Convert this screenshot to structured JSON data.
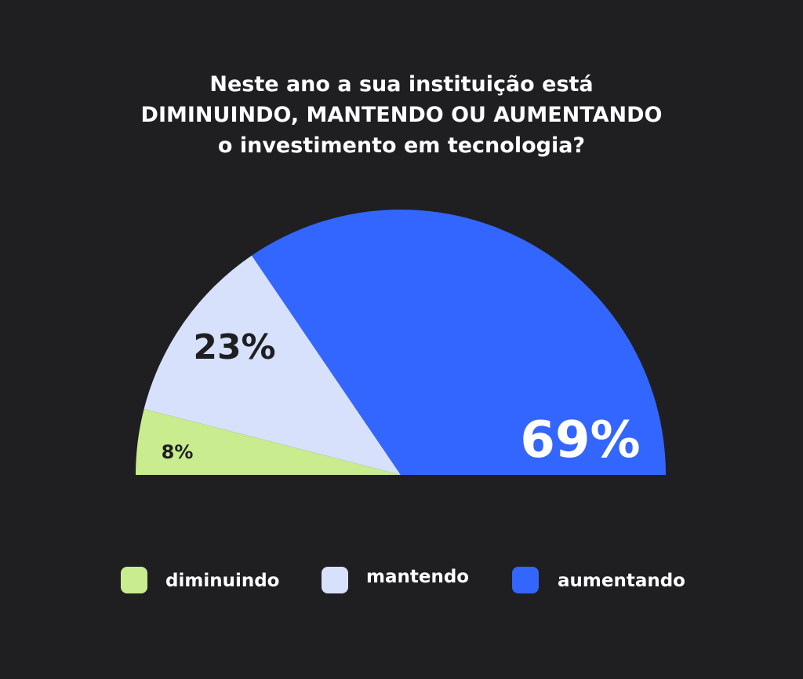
{
  "chart_data": {
    "type": "pie",
    "subtype": "semicircle",
    "title_lines": [
      "Neste ano a sua instituição está",
      "DIMINUINDO, MANTENDO OU AUMENTANDO",
      "o investimento em tecnologia?"
    ],
    "slices": [
      {
        "key": "diminuindo",
        "label": "diminuindo",
        "value": 8,
        "value_label": "8%",
        "color": "#c8ec8e",
        "label_color": "#1f1f22"
      },
      {
        "key": "mantendo",
        "label": "mantendo",
        "value": 23,
        "value_label": "23%",
        "color": "#d7e1fb",
        "label_color": "#1f1f22"
      },
      {
        "key": "aumentando",
        "label": "aumentando",
        "value": 69,
        "value_label": "69%",
        "color": "#3366ff",
        "label_color": "#ffffff"
      }
    ],
    "legend_position": "bottom",
    "background": "#1f1f22"
  }
}
